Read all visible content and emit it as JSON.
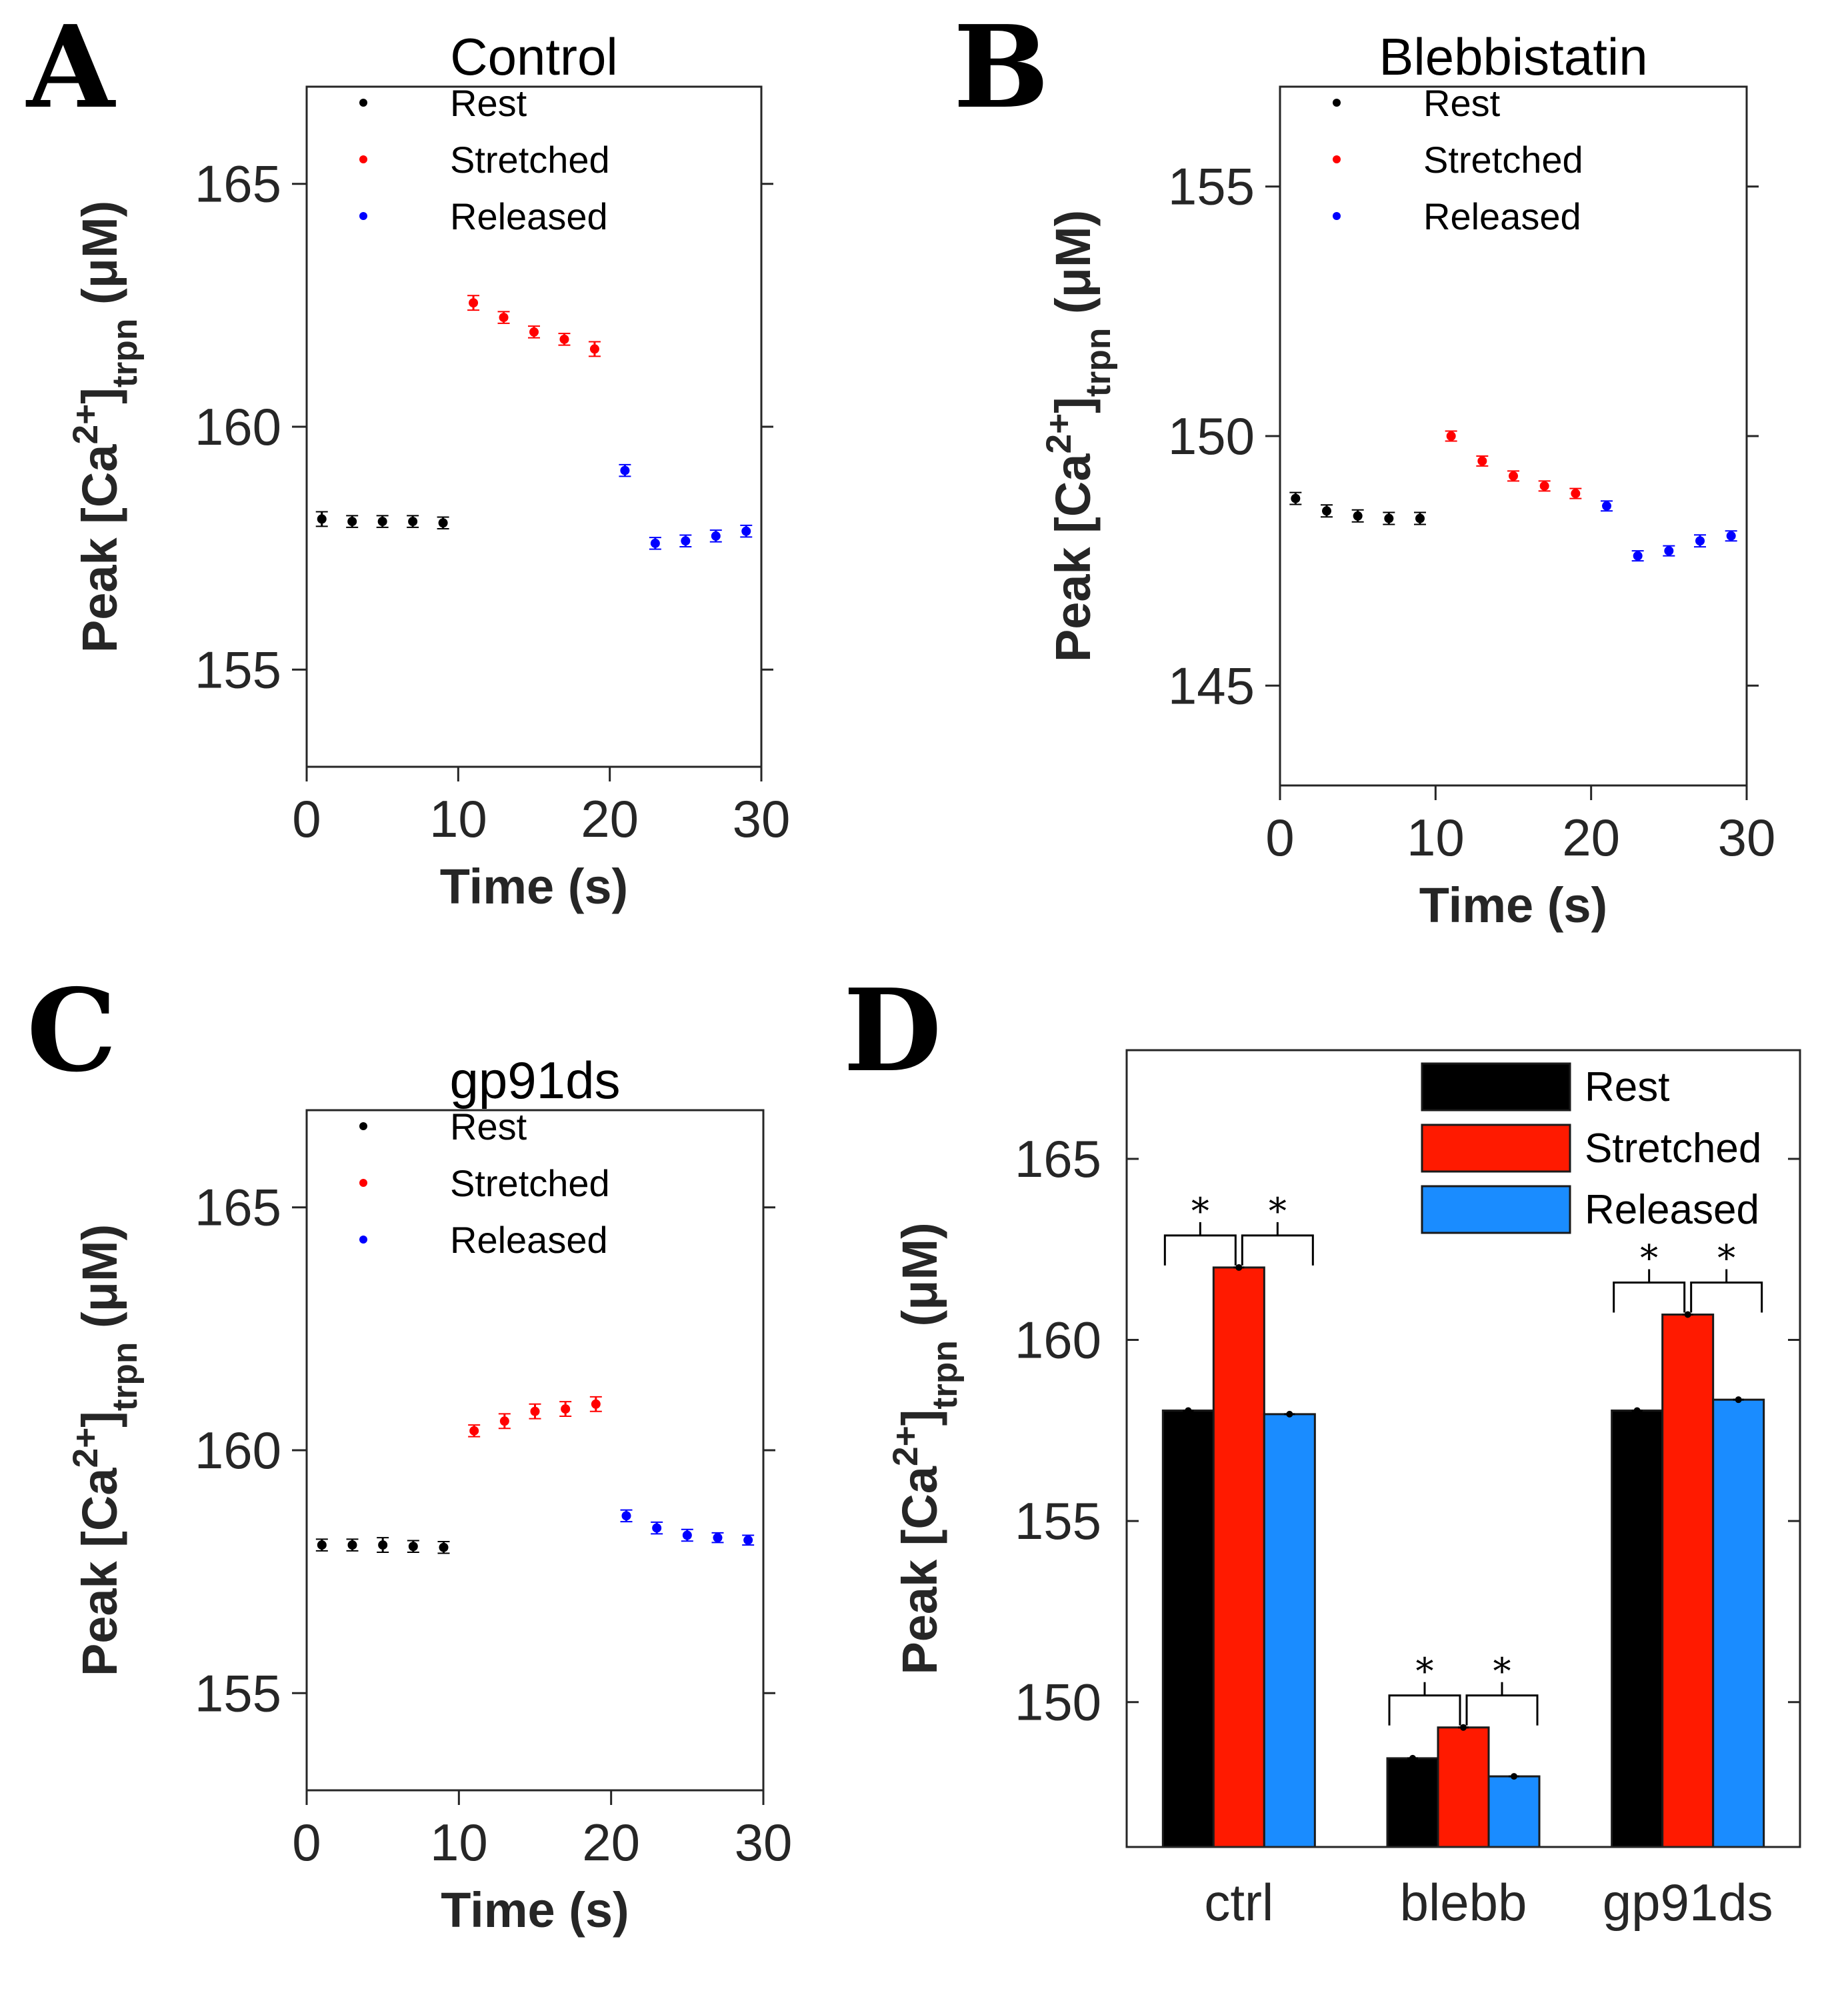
{
  "figure": {
    "y_label_main": "Peak [Ca",
    "y_label_sup": "2+",
    "y_label_close": "]",
    "y_label_sub": "trpn",
    "y_label_unit": " (μM)",
    "x_label": "Time (s)"
  },
  "panels": {
    "A": {
      "letter": "A"
    },
    "B": {
      "letter": "B"
    },
    "C": {
      "letter": "C"
    },
    "D": {
      "letter": "D"
    }
  },
  "colors": {
    "rest": "#000000",
    "stretched_dot": "#ff0000",
    "released_dot": "#0000ff",
    "stretched_bar": "#ff1a00",
    "released_bar": "#1a8cff",
    "axis": "#262626"
  },
  "chart_data": [
    {
      "id": "A",
      "type": "scatter",
      "title": "Control",
      "xlabel": "Time (s)",
      "ylabel": "Peak [Ca2+]trpn (μM)",
      "xlim": [
        0,
        30
      ],
      "ylim": [
        153,
        167
      ],
      "xticks": [
        0,
        10,
        20,
        30
      ],
      "yticks": [
        155,
        160,
        165
      ],
      "legend": [
        "Rest",
        "Stretched",
        "Released"
      ],
      "series": [
        {
          "name": "Rest",
          "x": [
            1,
            3,
            5,
            7,
            9
          ],
          "y": [
            158.1,
            158.05,
            158.05,
            158.05,
            158.02
          ],
          "err": [
            0.15,
            0.12,
            0.12,
            0.12,
            0.12
          ]
        },
        {
          "name": "Stretched",
          "x": [
            11,
            13,
            15,
            17,
            19
          ],
          "y": [
            162.55,
            162.25,
            161.95,
            161.8,
            161.6
          ],
          "err": [
            0.15,
            0.12,
            0.12,
            0.12,
            0.15
          ]
        },
        {
          "name": "Released",
          "x": [
            21,
            23,
            25,
            27,
            29
          ],
          "y": [
            159.1,
            157.6,
            157.65,
            157.75,
            157.85
          ],
          "err": [
            0.12,
            0.12,
            0.12,
            0.12,
            0.12
          ]
        }
      ]
    },
    {
      "id": "B",
      "type": "scatter",
      "title": "Blebbistatin",
      "xlabel": "Time (s)",
      "ylabel": "Peak [Ca2+]trpn (μM)",
      "xlim": [
        0,
        30
      ],
      "ylim": [
        143,
        157
      ],
      "xticks": [
        0,
        10,
        20,
        30
      ],
      "yticks": [
        145,
        150,
        155
      ],
      "legend": [
        "Rest",
        "Stretched",
        "Released"
      ],
      "series": [
        {
          "name": "Rest",
          "x": [
            1,
            3,
            5,
            7,
            9
          ],
          "y": [
            148.75,
            148.5,
            148.4,
            148.35,
            148.35
          ],
          "err": [
            0.12,
            0.12,
            0.12,
            0.12,
            0.12
          ]
        },
        {
          "name": "Stretched",
          "x": [
            11,
            13,
            15,
            17,
            19
          ],
          "y": [
            150.0,
            149.5,
            149.2,
            149.0,
            148.85
          ],
          "err": [
            0.1,
            0.1,
            0.1,
            0.1,
            0.1
          ]
        },
        {
          "name": "Released",
          "x": [
            21,
            23,
            25,
            27,
            29
          ],
          "y": [
            148.6,
            147.6,
            147.7,
            147.9,
            148.0
          ],
          "err": [
            0.1,
            0.1,
            0.1,
            0.12,
            0.1
          ]
        }
      ]
    },
    {
      "id": "C",
      "type": "scatter",
      "title": "gp91ds",
      "xlabel": "Time (s)",
      "ylabel": "Peak [Ca2+]trpn (μM)",
      "xlim": [
        0,
        30
      ],
      "ylim": [
        153,
        167
      ],
      "xticks": [
        0,
        10,
        20,
        30
      ],
      "yticks": [
        155,
        160,
        165
      ],
      "legend": [
        "Rest",
        "Stretched",
        "Released"
      ],
      "series": [
        {
          "name": "Rest",
          "x": [
            1,
            3,
            5,
            7,
            9
          ],
          "y": [
            158.05,
            158.05,
            158.05,
            158.02,
            158.0
          ],
          "err": [
            0.12,
            0.12,
            0.15,
            0.12,
            0.12
          ]
        },
        {
          "name": "Stretched",
          "x": [
            11,
            13,
            15,
            17,
            19
          ],
          "y": [
            160.4,
            160.6,
            160.8,
            160.85,
            160.95
          ],
          "err": [
            0.12,
            0.15,
            0.15,
            0.15,
            0.15
          ]
        },
        {
          "name": "Released",
          "x": [
            21,
            23,
            25,
            27,
            29
          ],
          "y": [
            158.65,
            158.4,
            158.25,
            158.2,
            158.15
          ],
          "err": [
            0.12,
            0.12,
            0.12,
            0.1,
            0.1
          ]
        }
      ]
    },
    {
      "id": "D",
      "type": "bar",
      "title": "",
      "xlabel": "",
      "ylabel": "Peak [Ca2+]trpn (μM)",
      "ylim": [
        146,
        168
      ],
      "yticks": [
        150,
        155,
        160,
        165
      ],
      "categories": [
        "ctrl",
        "blebb",
        "gp91ds"
      ],
      "legend": [
        "Rest",
        "Stretched",
        "Released"
      ],
      "series": [
        {
          "name": "Rest",
          "values": [
            158.05,
            148.45,
            158.05
          ]
        },
        {
          "name": "Stretched",
          "values": [
            162.0,
            149.3,
            160.7
          ]
        },
        {
          "name": "Released",
          "values": [
            157.95,
            147.95,
            158.35
          ]
        }
      ],
      "significance": [
        {
          "category": "ctrl",
          "pair": [
            "Rest",
            "Stretched"
          ],
          "label": "*"
        },
        {
          "category": "ctrl",
          "pair": [
            "Stretched",
            "Released"
          ],
          "label": "*"
        },
        {
          "category": "blebb",
          "pair": [
            "Rest",
            "Stretched"
          ],
          "label": "*"
        },
        {
          "category": "blebb",
          "pair": [
            "Stretched",
            "Released"
          ],
          "label": "*"
        },
        {
          "category": "gp91ds",
          "pair": [
            "Rest",
            "Stretched"
          ],
          "label": "*"
        },
        {
          "category": "gp91ds",
          "pair": [
            "Stretched",
            "Released"
          ],
          "label": "*"
        }
      ]
    }
  ]
}
